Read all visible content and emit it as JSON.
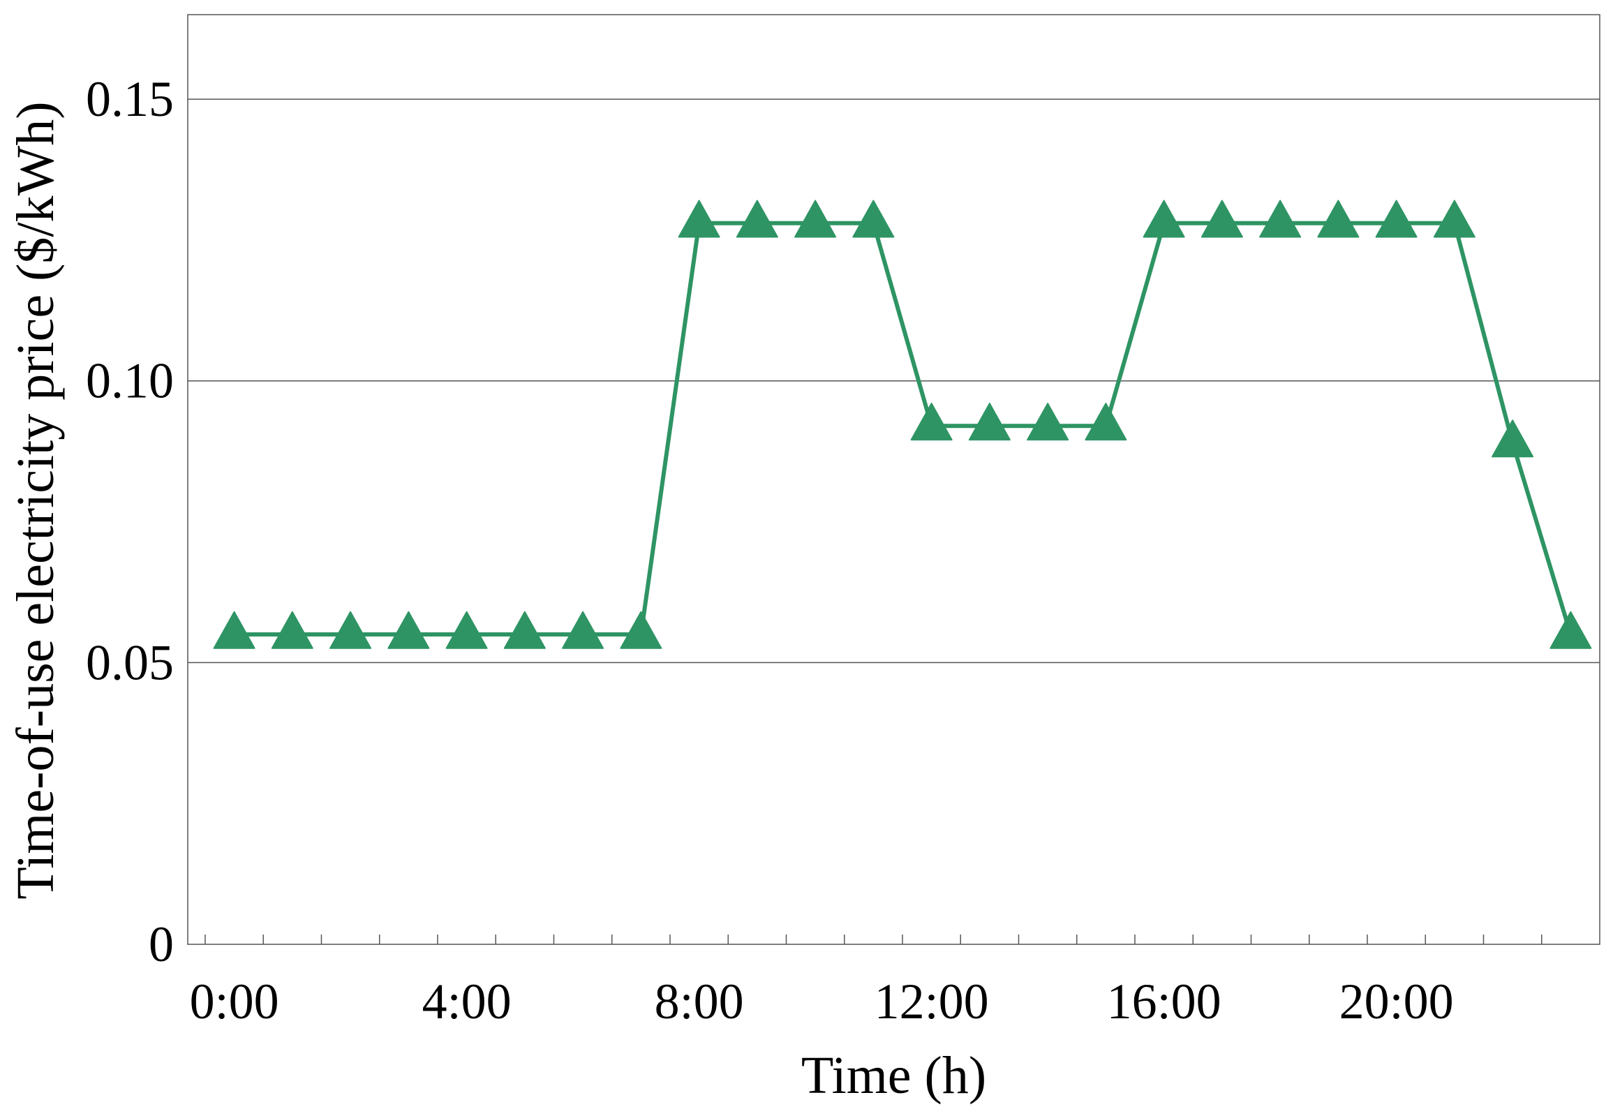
{
  "chart_data": {
    "type": "line",
    "xlabel": "Time (h)",
    "ylabel": "Time-of-use electricity price ($/kWh)",
    "xlim": [
      -0.8,
      23.5
    ],
    "ylim": [
      0,
      0.165
    ],
    "x_ticks": [
      {
        "value": 0,
        "label": "0:00"
      },
      {
        "value": 4,
        "label": "4:00"
      },
      {
        "value": 8,
        "label": "8:00"
      },
      {
        "value": 12,
        "label": "12:00"
      },
      {
        "value": 16,
        "label": "16:00"
      },
      {
        "value": 20,
        "label": "20:00"
      }
    ],
    "y_ticks": [
      {
        "value": 0,
        "label": "0"
      },
      {
        "value": 0.05,
        "label": "0.05"
      },
      {
        "value": 0.1,
        "label": "0.10"
      },
      {
        "value": 0.15,
        "label": "0.15"
      }
    ],
    "grid": {
      "horizontal": true,
      "vertical": false
    },
    "series": [
      {
        "color": "#2e9464",
        "marker": "triangle",
        "x": [
          0,
          1,
          2,
          3,
          4,
          5,
          6,
          7,
          8,
          9,
          10,
          11,
          12,
          13,
          14,
          15,
          16,
          17,
          18,
          19,
          20,
          21,
          22,
          23
        ],
        "y": [
          0.055,
          0.055,
          0.055,
          0.055,
          0.055,
          0.055,
          0.055,
          0.055,
          0.128,
          0.128,
          0.128,
          0.128,
          0.092,
          0.092,
          0.092,
          0.092,
          0.128,
          0.128,
          0.128,
          0.128,
          0.128,
          0.128,
          0.089,
          0.055
        ]
      }
    ]
  }
}
